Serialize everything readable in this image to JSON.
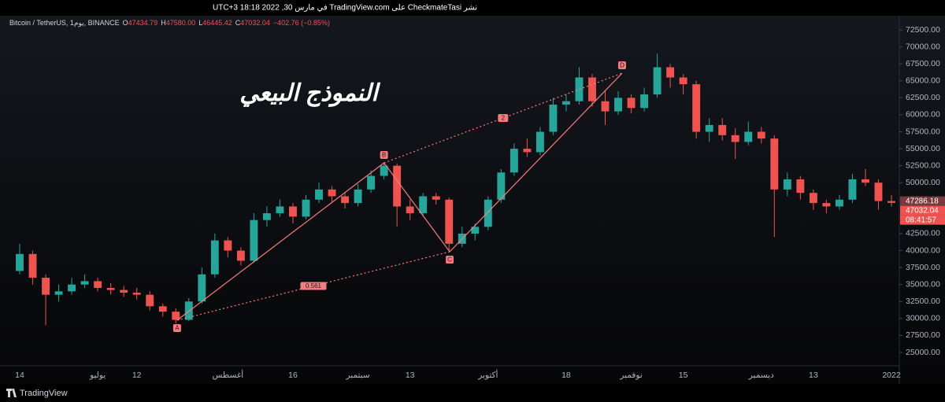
{
  "header": {
    "publish_line": "نشر CheckmateTasi على TradingView.com في مارس 30, 2022 18:18 UTC+3"
  },
  "chart_data": {
    "type": "candlestick",
    "symbol": "Bitcoin / TetherUS, 1يوم, BINANCE",
    "ohlc_header": {
      "open_label": "O",
      "open": "47434.79",
      "high_label": "H",
      "high": "47580.00",
      "low_label": "L",
      "low": "46445.42",
      "close_label": "C",
      "close": "47032.04",
      "change": "−402.76 (−0.85%)"
    },
    "title": "النموذج البيعي",
    "categories": [
      "14",
      null,
      null,
      null,
      null,
      null,
      "يوليو",
      null,
      null,
      "12",
      null,
      null,
      null,
      null,
      null,
      null,
      "أغسطس",
      null,
      null,
      null,
      null,
      "16",
      null,
      null,
      null,
      null,
      "سبتمبر",
      null,
      null,
      null,
      "13",
      null,
      null,
      null,
      null,
      null,
      "أكتوبر",
      null,
      null,
      null,
      null,
      null,
      "18",
      null,
      null,
      null,
      null,
      "نوفمبر",
      null,
      null,
      null,
      "15",
      null,
      null,
      null,
      null,
      null,
      "ديسمبر",
      null,
      null,
      null,
      "13",
      null,
      null,
      null,
      null,
      null,
      "2022"
    ],
    "candles": {
      "up_color": "#26a69a",
      "down_color": "#ef5350",
      "open": [
        37000,
        39500,
        36000,
        33500,
        34000,
        35000,
        35500,
        34500,
        34200,
        33800,
        33500,
        31800,
        31000,
        29800,
        32500,
        36500,
        41500,
        40000,
        38500,
        44500,
        45500,
        46500,
        45000,
        47500,
        49000,
        48000,
        47000,
        49000,
        51000,
        52500,
        46500,
        45500,
        48000,
        47500,
        41000,
        42500,
        43500,
        47500,
        51500,
        55000,
        54500,
        57500,
        61500,
        62000,
        65500,
        62000,
        60500,
        62500,
        61000,
        63000,
        67000,
        65500,
        64500,
        57500,
        58500,
        57000,
        56000,
        57500,
        56500,
        49000,
        50500,
        48500,
        47000,
        46500,
        47500,
        50500,
        50000,
        47300
      ],
      "high": [
        41000,
        40000,
        36500,
        35000,
        36000,
        36500,
        36000,
        35200,
        34800,
        34500,
        34000,
        32200,
        31500,
        33000,
        37500,
        42500,
        42000,
        40500,
        45500,
        46500,
        47500,
        47000,
        48200,
        50000,
        49500,
        48500,
        49800,
        51800,
        53000,
        52800,
        47500,
        48500,
        48500,
        47800,
        43500,
        44000,
        48000,
        52000,
        55800,
        56500,
        58200,
        62500,
        63000,
        67000,
        66000,
        63500,
        63500,
        63000,
        64000,
        69000,
        67500,
        66000,
        65000,
        59500,
        59500,
        58000,
        59000,
        58200,
        57000,
        51500,
        51000,
        49000,
        47500,
        48200,
        51300,
        52000,
        50500,
        48200
      ],
      "low": [
        36500,
        35000,
        29000,
        32500,
        33500,
        34500,
        34000,
        33500,
        33200,
        32800,
        31200,
        30300,
        29300,
        29600,
        32200,
        36000,
        39000,
        37800,
        38200,
        43500,
        45000,
        44000,
        44600,
        47000,
        47200,
        46200,
        46500,
        48500,
        50500,
        43500,
        44500,
        45000,
        46800,
        40000,
        40500,
        41500,
        43000,
        47000,
        51000,
        53800,
        54000,
        57000,
        60500,
        61500,
        61200,
        58500,
        60000,
        60200,
        60500,
        62500,
        64000,
        63000,
        56500,
        56000,
        56200,
        53500,
        55500,
        55800,
        42000,
        48000,
        47500,
        46000,
        45500,
        46000,
        47000,
        49500,
        46000,
        46500
      ],
      "close": [
        39500,
        36000,
        33500,
        34000,
        35000,
        35500,
        34500,
        34200,
        33800,
        33500,
        31800,
        31000,
        29800,
        32500,
        36500,
        41500,
        40000,
        38500,
        44500,
        45500,
        46500,
        45000,
        47500,
        49000,
        48000,
        47000,
        49000,
        51000,
        52500,
        46500,
        45500,
        48000,
        47500,
        41000,
        42500,
        43500,
        47500,
        51500,
        55000,
        54500,
        57500,
        61500,
        62000,
        65500,
        62000,
        60500,
        62500,
        61000,
        63000,
        67000,
        65500,
        64500,
        57500,
        58500,
        57000,
        56000,
        57500,
        56500,
        49000,
        50500,
        48500,
        47000,
        46500,
        47500,
        50500,
        50000,
        47300,
        47032
      ]
    },
    "pattern": {
      "color": "#f77c80",
      "points": [
        {
          "label": "A",
          "x": 12.1,
          "y": 29750
        },
        {
          "label": "B",
          "x": 28,
          "y": 52920
        },
        {
          "label": "C",
          "x": 33.05,
          "y": 39830
        },
        {
          "label": "D",
          "x": 46.3,
          "y": 66130
        }
      ],
      "ratios": [
        {
          "label": "0.561",
          "from": 0,
          "to": 2
        },
        {
          "label": "2",
          "from": 1,
          "to": 3
        }
      ]
    },
    "ylim": [
      23030,
      74590
    ],
    "yticks": [
      {
        "value": 25000,
        "label": "25000.00"
      },
      {
        "value": 27500,
        "label": "27500.00"
      },
      {
        "value": 30000,
        "label": "30000.00"
      },
      {
        "value": 32500,
        "label": "32500.00"
      },
      {
        "value": 35000,
        "label": "35000.00"
      },
      {
        "value": 37500,
        "label": "37500.00"
      },
      {
        "value": 40000,
        "label": "40000.00"
      },
      {
        "value": 42500,
        "label": "42500.00"
      },
      {
        "value": 45000,
        "label": "45000.00"
      },
      {
        "value": 47500,
        "label": "47500.00"
      },
      {
        "value": 50000,
        "label": "50000.00"
      },
      {
        "value": 52500,
        "label": "52500.00"
      },
      {
        "value": 55000,
        "label": "55000.00"
      },
      {
        "value": 57500,
        "label": "57500.00"
      },
      {
        "value": 60000,
        "label": "60000.00"
      },
      {
        "value": 62500,
        "label": "62500.00"
      },
      {
        "value": 65000,
        "label": "65000.00"
      },
      {
        "value": 67500,
        "label": "67500.00"
      },
      {
        "value": 70000,
        "label": "70000.00"
      },
      {
        "value": 72500,
        "label": "72500.00"
      }
    ],
    "price_tags": [
      {
        "value": 47286.18,
        "label": "47286.18",
        "color": "#7a3a3d"
      },
      {
        "value": 47032.04,
        "label": "47032.04",
        "color": "#ef5350"
      }
    ],
    "countdown": "08:41:57",
    "brand": "TradingView"
  }
}
